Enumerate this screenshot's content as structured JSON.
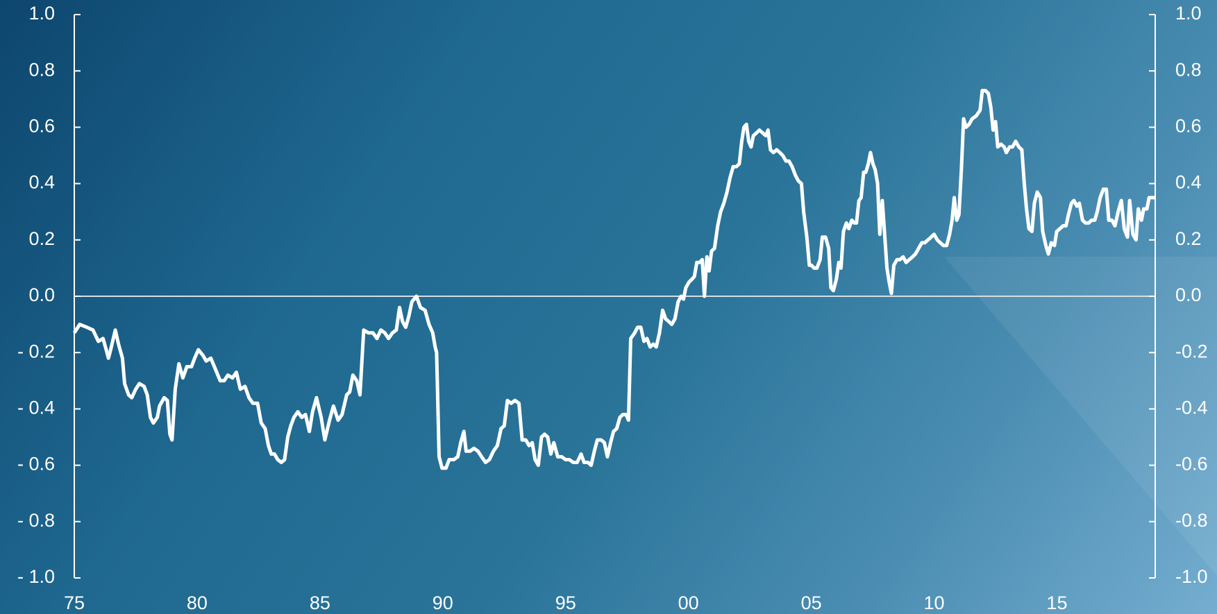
{
  "chart_data": {
    "type": "line",
    "x": [
      1975.0,
      1975.22,
      1975.51,
      1975.76,
      1975.98,
      1976.17,
      1976.3,
      1976.39,
      1976.48,
      1976.67,
      1976.8,
      1976.96,
      1977.05,
      1977.21,
      1977.34,
      1977.5,
      1977.65,
      1977.84,
      1977.97,
      1978.1,
      1978.22,
      1978.38,
      1978.47,
      1978.66,
      1978.79,
      1978.89,
      1978.98,
      1979.11,
      1979.26,
      1979.42,
      1979.58,
      1979.77,
      1979.9,
      1980.05,
      1980.24,
      1980.37,
      1980.56,
      1980.75,
      1980.94,
      1981.1,
      1981.25,
      1981.44,
      1981.6,
      1981.76,
      1981.95,
      1982.11,
      1982.27,
      1982.46,
      1982.61,
      1982.77,
      1982.9,
      1983.02,
      1983.15,
      1983.28,
      1983.43,
      1983.56,
      1983.69,
      1983.81,
      1983.94,
      1984.1,
      1984.26,
      1984.41,
      1984.57,
      1984.7,
      1984.86,
      1985.05,
      1985.2,
      1985.39,
      1985.55,
      1985.74,
      1985.9,
      1986.09,
      1986.21,
      1986.34,
      1986.5,
      1986.63,
      1986.78,
      1986.97,
      1987.16,
      1987.32,
      1987.48,
      1987.64,
      1987.79,
      1987.95,
      1988.11,
      1988.24,
      1988.36,
      1988.49,
      1988.62,
      1988.74,
      1988.93,
      1989.09,
      1989.28,
      1989.44,
      1989.59,
      1989.69,
      1989.75,
      1989.85,
      1989.97,
      1990.13,
      1990.26,
      1990.45,
      1990.61,
      1990.73,
      1990.86,
      1990.95,
      1991.11,
      1991.27,
      1991.43,
      1991.58,
      1991.74,
      1991.9,
      1992.06,
      1992.22,
      1992.37,
      1992.5,
      1992.63,
      1992.78,
      1992.94,
      1993.1,
      1993.23,
      1993.38,
      1993.51,
      1993.64,
      1993.76,
      1993.89,
      1994.02,
      1994.14,
      1994.27,
      1994.4,
      1994.52,
      1994.68,
      1994.84,
      1995.0,
      1995.15,
      1995.31,
      1995.47,
      1995.63,
      1995.75,
      1995.91,
      1996.04,
      1996.17,
      1996.29,
      1996.45,
      1996.58,
      1996.7,
      1996.83,
      1996.95,
      1997.08,
      1997.21,
      1997.33,
      1997.46,
      1997.56,
      1997.65,
      1997.81,
      1997.93,
      1998.06,
      1998.19,
      1998.31,
      1998.44,
      1998.57,
      1998.69,
      1998.82,
      1998.95,
      1999.07,
      1999.2,
      1999.32,
      1999.45,
      1999.58,
      1999.7,
      1999.8,
      1999.89,
      2000.02,
      2000.14,
      2000.24,
      2000.34,
      2000.46,
      2000.56,
      2000.65,
      2000.75,
      2000.84,
      2000.94,
      2001.06,
      2001.19,
      2001.31,
      2001.44,
      2001.57,
      2001.69,
      2001.82,
      2001.95,
      2002.07,
      2002.17,
      2002.26,
      2002.36,
      2002.45,
      2002.55,
      2002.64,
      2002.77,
      2002.89,
      2003.02,
      2003.15,
      2003.24,
      2003.34,
      2003.46,
      2003.59,
      2003.72,
      2003.84,
      2003.97,
      2004.09,
      2004.22,
      2004.35,
      2004.47,
      2004.6,
      2004.69,
      2004.82,
      2004.92,
      2005.01,
      2005.11,
      2005.23,
      2005.36,
      2005.45,
      2005.58,
      2005.71,
      2005.8,
      2005.9,
      2006.02,
      2006.12,
      2006.21,
      2006.31,
      2006.43,
      2006.53,
      2006.65,
      2006.75,
      2006.84,
      2006.94,
      2007.03,
      2007.13,
      2007.22,
      2007.32,
      2007.41,
      2007.51,
      2007.6,
      2007.7,
      2007.79,
      2007.89,
      2007.98,
      2008.08,
      2008.17,
      2008.26,
      2008.36,
      2008.49,
      2008.61,
      2008.74,
      2008.86,
      2008.99,
      2009.12,
      2009.24,
      2009.37,
      2009.5,
      2009.62,
      2009.75,
      2009.88,
      2010.0,
      2010.13,
      2010.25,
      2010.38,
      2010.51,
      2010.63,
      2010.73,
      2010.82,
      2010.92,
      2011.01,
      2011.11,
      2011.2,
      2011.3,
      2011.42,
      2011.55,
      2011.71,
      2011.87,
      2011.96,
      2012.09,
      2012.21,
      2012.31,
      2012.4,
      2012.5,
      2012.59,
      2012.72,
      2012.85,
      2012.94,
      2013.07,
      2013.19,
      2013.32,
      2013.45,
      2013.57,
      2013.67,
      2013.76,
      2013.86,
      2013.98,
      2014.08,
      2014.2,
      2014.33,
      2014.42,
      2014.55,
      2014.65,
      2014.77,
      2014.9,
      2014.99,
      2015.12,
      2015.25,
      2015.37,
      2015.47,
      2015.59,
      2015.69,
      2015.81,
      2015.91,
      2016.04,
      2016.16,
      2016.29,
      2016.41,
      2016.54,
      2016.64,
      2016.76,
      2016.89,
      2017.01,
      2017.11,
      2017.24,
      2017.36,
      2017.49,
      2017.62,
      2017.74,
      2017.87,
      2017.96,
      2018.09,
      2018.22,
      2018.31,
      2018.44,
      2018.53,
      2018.66,
      2018.75,
      2018.88,
      2018.97
    ],
    "series": [
      {
        "color": "#ffffff",
        "values": [
          -0.13,
          -0.1,
          -0.11,
          -0.12,
          -0.16,
          -0.15,
          -0.19,
          -0.22,
          -0.19,
          -0.12,
          -0.17,
          -0.22,
          -0.31,
          -0.35,
          -0.36,
          -0.33,
          -0.31,
          -0.32,
          -0.35,
          -0.43,
          -0.45,
          -0.43,
          -0.39,
          -0.36,
          -0.37,
          -0.49,
          -0.51,
          -0.33,
          -0.24,
          -0.29,
          -0.25,
          -0.25,
          -0.22,
          -0.19,
          -0.21,
          -0.23,
          -0.22,
          -0.26,
          -0.3,
          -0.3,
          -0.28,
          -0.29,
          -0.27,
          -0.33,
          -0.32,
          -0.36,
          -0.38,
          -0.38,
          -0.45,
          -0.47,
          -0.53,
          -0.56,
          -0.56,
          -0.58,
          -0.59,
          -0.58,
          -0.5,
          -0.46,
          -0.43,
          -0.41,
          -0.43,
          -0.42,
          -0.48,
          -0.41,
          -0.36,
          -0.43,
          -0.51,
          -0.44,
          -0.39,
          -0.44,
          -0.42,
          -0.35,
          -0.34,
          -0.28,
          -0.3,
          -0.35,
          -0.12,
          -0.13,
          -0.13,
          -0.15,
          -0.12,
          -0.13,
          -0.15,
          -0.13,
          -0.12,
          -0.04,
          -0.09,
          -0.11,
          -0.07,
          -0.02,
          0.0,
          -0.04,
          -0.05,
          -0.1,
          -0.13,
          -0.18,
          -0.2,
          -0.57,
          -0.61,
          -0.61,
          -0.58,
          -0.58,
          -0.57,
          -0.52,
          -0.48,
          -0.55,
          -0.55,
          -0.54,
          -0.55,
          -0.57,
          -0.59,
          -0.58,
          -0.55,
          -0.53,
          -0.47,
          -0.46,
          -0.37,
          -0.38,
          -0.37,
          -0.38,
          -0.51,
          -0.51,
          -0.53,
          -0.52,
          -0.58,
          -0.6,
          -0.5,
          -0.49,
          -0.5,
          -0.56,
          -0.52,
          -0.57,
          -0.57,
          -0.58,
          -0.58,
          -0.59,
          -0.59,
          -0.56,
          -0.59,
          -0.59,
          -0.6,
          -0.55,
          -0.51,
          -0.51,
          -0.52,
          -0.57,
          -0.52,
          -0.48,
          -0.47,
          -0.43,
          -0.42,
          -0.42,
          -0.44,
          -0.15,
          -0.13,
          -0.11,
          -0.11,
          -0.16,
          -0.15,
          -0.18,
          -0.17,
          -0.18,
          -0.13,
          -0.05,
          -0.08,
          -0.09,
          -0.1,
          -0.08,
          -0.02,
          0.0,
          -0.01,
          0.03,
          0.05,
          0.06,
          0.07,
          0.12,
          0.12,
          0.13,
          0.0,
          0.14,
          0.09,
          0.16,
          0.17,
          0.25,
          0.3,
          0.33,
          0.37,
          0.42,
          0.46,
          0.46,
          0.47,
          0.55,
          0.6,
          0.61,
          0.55,
          0.53,
          0.57,
          0.58,
          0.59,
          0.58,
          0.57,
          0.59,
          0.52,
          0.51,
          0.52,
          0.51,
          0.5,
          0.48,
          0.48,
          0.46,
          0.43,
          0.41,
          0.4,
          0.3,
          0.21,
          0.11,
          0.11,
          0.1,
          0.1,
          0.13,
          0.21,
          0.21,
          0.17,
          0.03,
          0.02,
          0.06,
          0.12,
          0.1,
          0.23,
          0.26,
          0.24,
          0.27,
          0.26,
          0.26,
          0.34,
          0.35,
          0.44,
          0.44,
          0.47,
          0.51,
          0.47,
          0.45,
          0.4,
          0.22,
          0.34,
          0.23,
          0.1,
          0.05,
          0.01,
          0.11,
          0.13,
          0.13,
          0.14,
          0.12,
          0.13,
          0.14,
          0.15,
          0.17,
          0.19,
          0.19,
          0.2,
          0.21,
          0.22,
          0.2,
          0.19,
          0.18,
          0.18,
          0.22,
          0.27,
          0.35,
          0.27,
          0.29,
          0.45,
          0.63,
          0.6,
          0.61,
          0.63,
          0.64,
          0.66,
          0.73,
          0.73,
          0.72,
          0.67,
          0.59,
          0.62,
          0.53,
          0.54,
          0.53,
          0.51,
          0.53,
          0.53,
          0.55,
          0.53,
          0.52,
          0.4,
          0.31,
          0.24,
          0.23,
          0.33,
          0.37,
          0.35,
          0.23,
          0.18,
          0.15,
          0.19,
          0.18,
          0.23,
          0.24,
          0.25,
          0.25,
          0.29,
          0.33,
          0.34,
          0.32,
          0.33,
          0.27,
          0.26,
          0.26,
          0.27,
          0.27,
          0.3,
          0.35,
          0.38,
          0.38,
          0.27,
          0.27,
          0.25,
          0.3,
          0.34,
          0.24,
          0.21,
          0.34,
          0.22,
          0.2,
          0.31,
          0.27,
          0.31,
          0.31,
          0.35,
          0.35,
          0.35
        ]
      }
    ],
    "xlim": [
      1975,
      2019
    ],
    "xticks": [
      {
        "value": 1975,
        "label": "75"
      },
      {
        "value": 1980,
        "label": "80"
      },
      {
        "value": 1985,
        "label": "85"
      },
      {
        "value": 1990,
        "label": "90"
      },
      {
        "value": 1995,
        "label": "95"
      },
      {
        "value": 2000,
        "label": "00"
      },
      {
        "value": 2005,
        "label": "05"
      },
      {
        "value": 2010,
        "label": "10"
      },
      {
        "value": 2015,
        "label": "15"
      }
    ],
    "ylim": [
      -1,
      1
    ],
    "yticks": [
      {
        "value": 1,
        "label": "1.0"
      },
      {
        "value": 0.8,
        "label": "0.8"
      },
      {
        "value": 0.6,
        "label": "0.6"
      },
      {
        "value": 0.4,
        "label": "0.4"
      },
      {
        "value": 0.2,
        "label": "0.2"
      },
      {
        "value": 0,
        "label": "0.0"
      },
      {
        "value": -0.2,
        "label": "- 0.2"
      },
      {
        "value": -0.4,
        "label": "- 0.4"
      },
      {
        "value": -0.6,
        "label": "- 0.6"
      },
      {
        "value": -0.8,
        "label": "- 0.8"
      },
      {
        "value": -1,
        "label": "- 1.0"
      }
    ],
    "y2lim": [
      -1,
      1
    ],
    "y2ticks": [
      {
        "value": 1,
        "label": "1.0"
      },
      {
        "value": 0.8,
        "label": "0.8"
      },
      {
        "value": 0.6,
        "label": "0.6"
      },
      {
        "value": 0.4,
        "label": "0.4"
      },
      {
        "value": 0.2,
        "label": "0.2"
      },
      {
        "value": 0,
        "label": "0.0"
      },
      {
        "value": -0.2,
        "label": "-0.2"
      },
      {
        "value": -0.4,
        "label": "-0.4"
      },
      {
        "value": -0.6,
        "label": "-0.6"
      },
      {
        "value": -0.8,
        "label": "-0.8"
      },
      {
        "value": -1,
        "label": "-1.0"
      }
    ],
    "grid": false
  }
}
